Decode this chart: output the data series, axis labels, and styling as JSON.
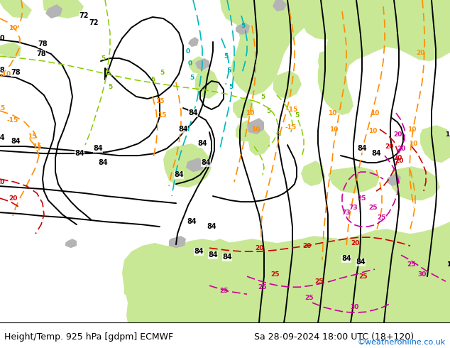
{
  "title_left": "Height/Temp. 925 hPa [gdpm] ECMWF",
  "title_right": "Sa 28-09-2024 18:00 UTC (18+120)",
  "credit": "©weatheronline.co.uk",
  "credit_color": "#0066cc",
  "land_color_green": "#c8e896",
  "land_color_gray": "#b4b4b4",
  "sea_color": "#d8d8d8",
  "title_fontsize": 9,
  "credit_fontsize": 8,
  "black_lw": 1.4,
  "temp_lw": 1.2
}
